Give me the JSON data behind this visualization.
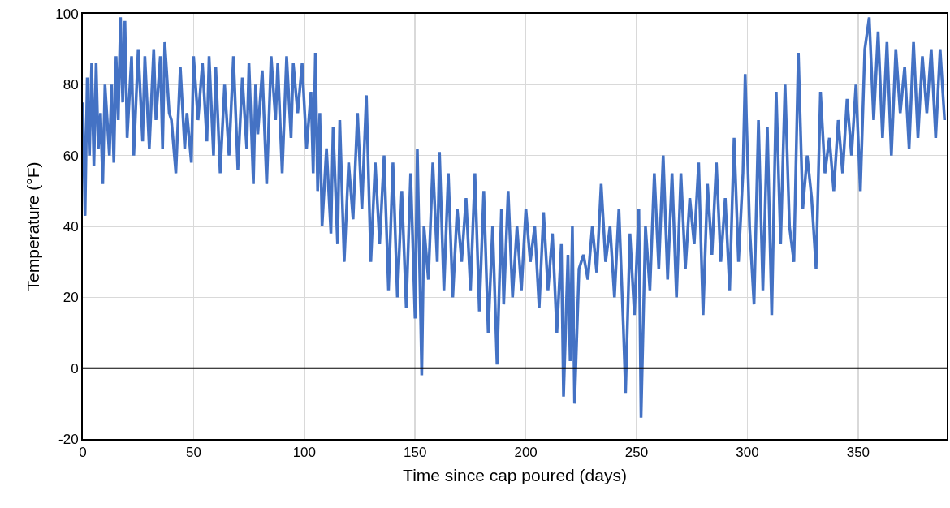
{
  "chart_data": {
    "type": "line",
    "xlabel": "Time since cap poured (days)",
    "ylabel": "Temperature (°F)",
    "xlim": [
      0,
      390
    ],
    "xticks": [
      0,
      50,
      100,
      150,
      200,
      250,
      300,
      350
    ],
    "ylim": [
      -20,
      100
    ],
    "yticks": [
      -20,
      0,
      20,
      40,
      60,
      80,
      100
    ],
    "grid": true,
    "marker": "none",
    "line_style": "solid",
    "ref_lines": [
      {
        "axis": "y",
        "value": 0,
        "color": "#000000"
      }
    ],
    "series": [
      {
        "color": "#4472c4",
        "x": [
          0,
          1,
          2,
          3,
          4,
          5,
          6,
          7,
          8,
          9,
          10,
          12,
          13,
          14,
          15,
          16,
          17,
          18,
          19,
          20,
          22,
          23,
          25,
          27,
          28,
          30,
          32,
          33,
          35,
          36,
          37,
          39,
          40,
          42,
          44,
          46,
          47,
          49,
          50,
          52,
          54,
          56,
          57,
          59,
          60,
          62,
          64,
          66,
          68,
          70,
          72,
          74,
          75,
          77,
          78,
          79,
          81,
          83,
          85,
          87,
          88,
          90,
          92,
          94,
          95,
          97,
          99,
          101,
          103,
          104,
          105,
          106,
          107,
          108,
          110,
          112,
          113,
          115,
          116,
          118,
          120,
          122,
          124,
          126,
          128,
          130,
          132,
          134,
          136,
          138,
          140,
          142,
          144,
          146,
          148,
          150,
          151,
          153,
          154,
          156,
          158,
          160,
          161,
          163,
          165,
          167,
          169,
          171,
          173,
          175,
          177,
          179,
          181,
          183,
          185,
          187,
          189,
          190,
          192,
          194,
          196,
          198,
          200,
          202,
          204,
          206,
          208,
          210,
          212,
          214,
          216,
          217,
          219,
          220,
          221,
          222,
          224,
          226,
          228,
          230,
          232,
          234,
          236,
          238,
          240,
          242,
          244,
          245,
          247,
          249,
          251,
          252,
          254,
          256,
          258,
          260,
          262,
          264,
          266,
          268,
          270,
          272,
          274,
          276,
          278,
          280,
          282,
          284,
          286,
          288,
          290,
          292,
          294,
          296,
          298,
          299,
          301,
          303,
          305,
          307,
          309,
          311,
          313,
          315,
          317,
          319,
          321,
          323,
          325,
          327,
          329,
          331,
          333,
          335,
          337,
          339,
          341,
          343,
          345,
          347,
          349,
          351,
          353,
          355,
          357,
          359,
          361,
          363,
          365,
          367,
          369,
          371,
          373,
          375,
          377,
          379,
          381,
          383,
          385,
          387,
          389
        ],
        "values": [
          75,
          43,
          82,
          60,
          86,
          57,
          86,
          62,
          72,
          52,
          80,
          60,
          80,
          58,
          88,
          70,
          99,
          75,
          98,
          65,
          88,
          60,
          90,
          64,
          88,
          62,
          90,
          70,
          88,
          62,
          92,
          72,
          70,
          55,
          85,
          62,
          72,
          58,
          88,
          70,
          86,
          64,
          88,
          60,
          85,
          55,
          80,
          60,
          88,
          56,
          82,
          62,
          86,
          52,
          80,
          66,
          84,
          52,
          88,
          70,
          86,
          55,
          88,
          65,
          86,
          72,
          86,
          62,
          78,
          55,
          89,
          50,
          72,
          40,
          62,
          38,
          68,
          35,
          70,
          30,
          58,
          42,
          72,
          45,
          77,
          30,
          58,
          35,
          60,
          22,
          58,
          20,
          50,
          17,
          55,
          14,
          62,
          -2,
          40,
          25,
          58,
          30,
          61,
          22,
          55,
          20,
          45,
          30,
          48,
          22,
          55,
          16,
          50,
          10,
          40,
          1,
          45,
          18,
          50,
          20,
          40,
          22,
          45,
          30,
          40,
          17,
          44,
          22,
          38,
          10,
          35,
          -8,
          32,
          2,
          40,
          -10,
          28,
          32,
          25,
          40,
          27,
          52,
          30,
          40,
          20,
          45,
          12,
          -7,
          38,
          15,
          45,
          -14,
          40,
          22,
          55,
          28,
          60,
          25,
          55,
          20,
          55,
          28,
          48,
          35,
          58,
          15,
          52,
          32,
          58,
          30,
          48,
          22,
          65,
          30,
          55,
          83,
          40,
          18,
          70,
          22,
          68,
          15,
          78,
          35,
          80,
          40,
          30,
          89,
          45,
          60,
          48,
          28,
          78,
          55,
          65,
          50,
          70,
          55,
          76,
          60,
          80,
          50,
          90,
          99,
          70,
          95,
          65,
          92,
          60,
          90,
          72,
          85,
          62,
          92,
          65,
          88,
          72,
          90,
          65,
          90,
          70
        ]
      }
    ]
  }
}
